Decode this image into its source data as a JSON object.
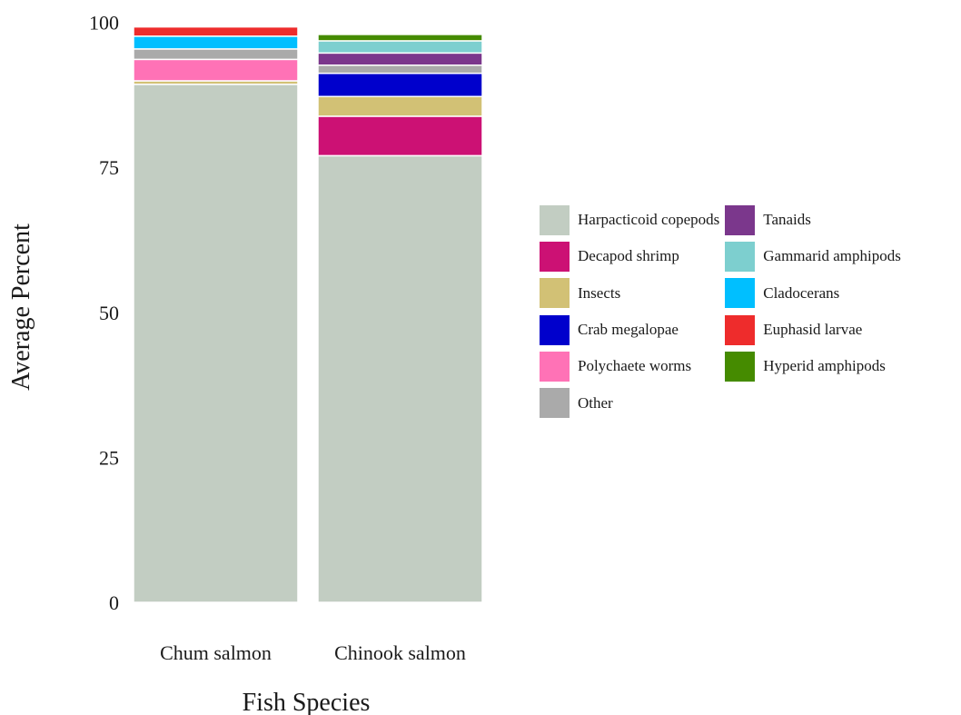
{
  "chart_data": {
    "type": "bar",
    "stacked": true,
    "xlabel": "Fish Species",
    "ylabel": "Average Percent",
    "categories": [
      "Chum salmon",
      "Chinook salmon"
    ],
    "ylim": [
      0,
      101.5
    ],
    "yticks": [
      "0",
      "25",
      "50",
      "75",
      "100"
    ],
    "grid": false,
    "legend_position": "right",
    "series": [
      {
        "name": "Harpacticoid copepods",
        "color": "#c2cdc2",
        "values": [
          89.3,
          77.0
        ]
      },
      {
        "name": "Decapod shrimp",
        "color": "#cc1174",
        "values": [
          0.0,
          6.8
        ]
      },
      {
        "name": "Insects",
        "color": "#d2c175",
        "values": [
          0.6,
          3.4
        ]
      },
      {
        "name": "Crab megalopae",
        "color": "#0000cc",
        "values": [
          0.0,
          4.0
        ]
      },
      {
        "name": "Polychaete worms",
        "color": "#ff72b6",
        "values": [
          3.7,
          0.0
        ]
      },
      {
        "name": "Other",
        "color": "#aaaaaa",
        "values": [
          1.8,
          1.4
        ]
      },
      {
        "name": "Tanaids",
        "color": "#7b378c",
        "values": [
          0.0,
          2.1
        ]
      },
      {
        "name": "Gammarid amphipods",
        "color": "#7dcfcf",
        "values": [
          0.0,
          2.1
        ]
      },
      {
        "name": "Cladocerans",
        "color": "#00bfff",
        "values": [
          2.2,
          0.0
        ]
      },
      {
        "name": "Euphasid larvae",
        "color": "#ee2c2c",
        "values": [
          1.6,
          0.0
        ]
      },
      {
        "name": "Hyperid amphipods",
        "color": "#458b00",
        "values": [
          0.0,
          1.1
        ]
      }
    ]
  }
}
